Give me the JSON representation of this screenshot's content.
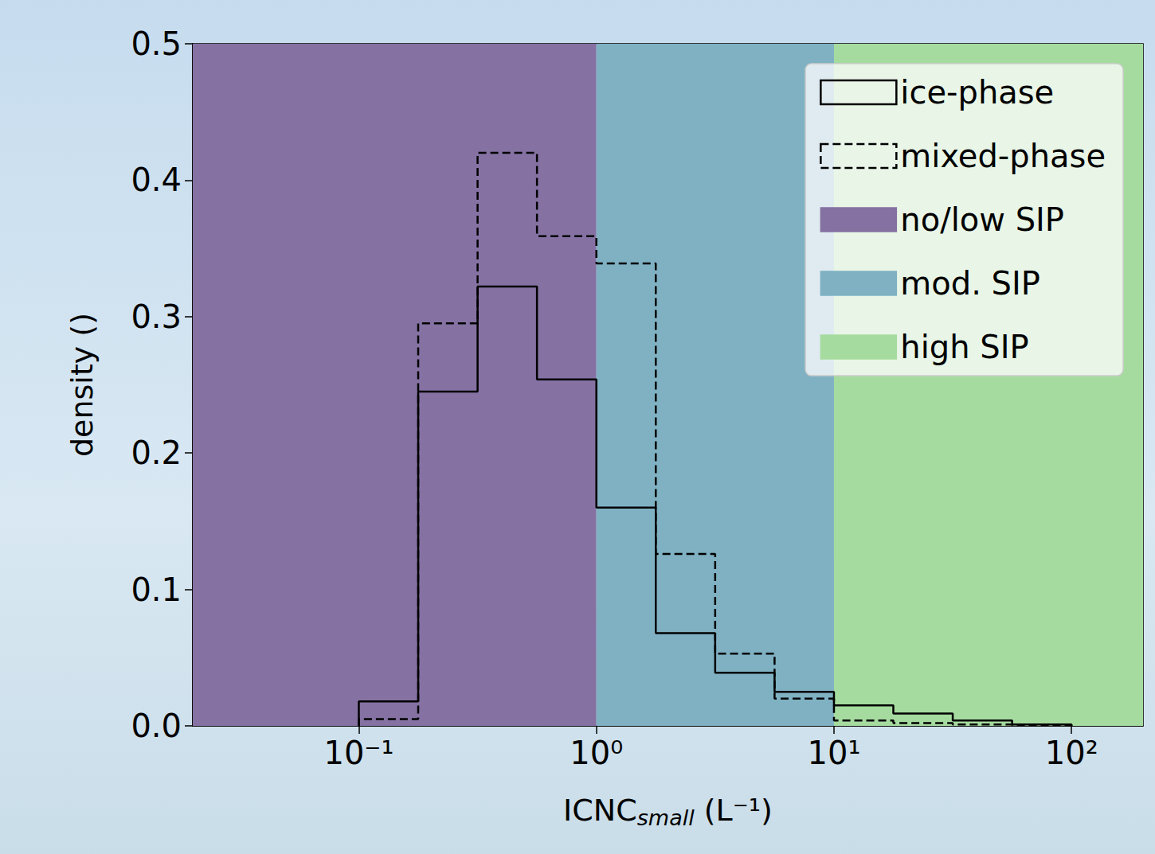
{
  "chart_data": {
    "type": "histogram",
    "xlabel": "ICNCsmall (L⁻¹)",
    "ylabel": "density ()",
    "log": "x",
    "grid": false,
    "legend": "upper right",
    "xlim": [
      0.02,
      200
    ],
    "xticks": [
      {
        "value": 0.1,
        "label": "10⁻¹"
      },
      {
        "value": 1,
        "label": "10⁰"
      },
      {
        "value": 10,
        "label": "10¹"
      },
      {
        "value": 100,
        "label": "10²"
      }
    ],
    "ylim": [
      0,
      0.5
    ],
    "yticks": [
      {
        "value": 0,
        "label": "0.0"
      },
      0.1,
      0.2,
      0.3,
      0.4,
      0.5
    ],
    "bins": [
      0.1,
      0.1778,
      0.3162,
      0.5623,
      1,
      1.778,
      3.162,
      5.623,
      10,
      17.78,
      31.62,
      56.23,
      100
    ],
    "series": [
      {
        "name": "ice-phase",
        "color": "#000000",
        "line_style": "solid",
        "values": [
          0.018,
          0.245,
          0.322,
          0.254,
          0.16,
          0.068,
          0.039,
          0.025,
          0.015,
          0.009,
          0.004,
          0.001
        ]
      },
      {
        "name": "mixed-phase",
        "color": "#000000",
        "line_style": "dashed",
        "values": [
          0.005,
          0.295,
          0.42,
          0.359,
          0.339,
          0.126,
          0.053,
          0.02,
          0.004,
          0.002,
          0.001,
          0.0005
        ]
      }
    ],
    "spans": [
      {
        "name": "no/low SIP",
        "range": [
          0.02,
          1
        ],
        "color": "#8572a3"
      },
      {
        "name": "mod. SIP",
        "range": [
          1,
          10
        ],
        "color": "#7fb1c3"
      },
      {
        "name": "high SIP",
        "range": [
          10,
          200
        ],
        "color": "#a6db9f"
      }
    ]
  }
}
